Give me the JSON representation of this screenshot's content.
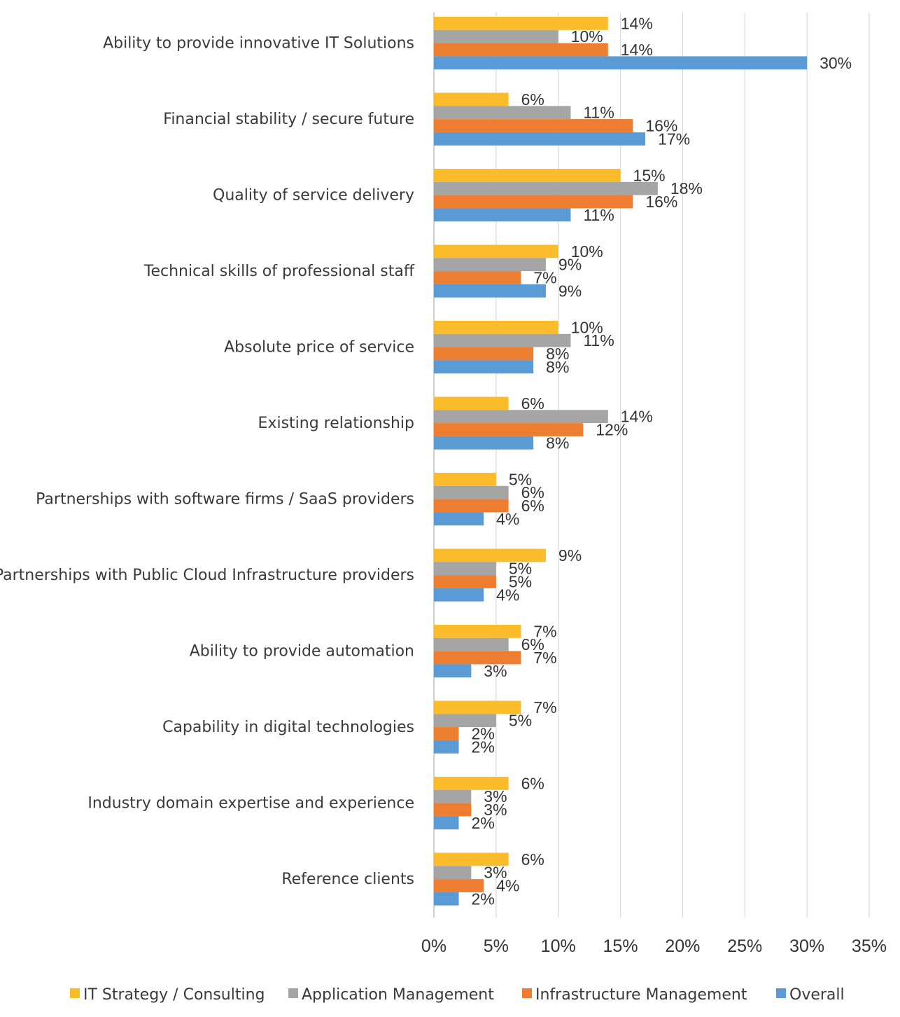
{
  "chart_data": {
    "type": "bar",
    "orientation": "horizontal",
    "categories": [
      "Ability to provide innovative IT Solutions",
      "Financial stability / secure future",
      "Quality of service delivery",
      "Technical  skills of professional staff",
      "Absolute price of service",
      "Existing relationship",
      "Partnerships with software firms / SaaS providers",
      "Partnerships with  Public Cloud Infrastructure providers",
      "Ability to provide automation",
      "Capability  in digital technologies",
      "Industry domain expertise  and experience",
      "Reference  clients"
    ],
    "series": [
      {
        "name": "IT Strategy  / Consulting",
        "color": "#FBBC2C",
        "values": [
          14,
          6,
          15,
          10,
          10,
          6,
          5,
          9,
          7,
          7,
          6,
          6
        ],
        "labels": [
          "14%",
          "6%",
          "15%",
          "10%",
          "10%",
          "6%",
          "5%",
          "9%",
          "7%",
          "7%",
          "6%",
          "6%"
        ]
      },
      {
        "name": "Application Management",
        "color": "#A5A5A5",
        "values": [
          10,
          11,
          18,
          9,
          11,
          14,
          6,
          5,
          6,
          5,
          3,
          3
        ],
        "labels": [
          "10%",
          "11%",
          "18%",
          "9%",
          "11%",
          "14%",
          "6%",
          "5%",
          "6%",
          "5%",
          "3%",
          "3%"
        ]
      },
      {
        "name": "Infrastructure Management",
        "color": "#ED7D31",
        "values": [
          14,
          16,
          16,
          7,
          8,
          12,
          6,
          5,
          7,
          2,
          3,
          4
        ],
        "labels": [
          "14%",
          "16%",
          "16%",
          "7%",
          "8%",
          "12%",
          "6%",
          "5%",
          "7%",
          "2%",
          "3%",
          "4%"
        ]
      },
      {
        "name": "Overall",
        "color": "#5B9BD5",
        "values": [
          30,
          17,
          11,
          9,
          8,
          8,
          4,
          4,
          3,
          2,
          2,
          2
        ],
        "labels": [
          "30%",
          "17%",
          "11%",
          "9%",
          "8%",
          "8%",
          "4%",
          "4%",
          "3%",
          "2%",
          "2%",
          "2%"
        ]
      }
    ],
    "xlim": [
      0,
      35
    ],
    "xticks": [
      0,
      5,
      10,
      15,
      20,
      25,
      30,
      35
    ],
    "xtick_labels": [
      "0%",
      "5%",
      "10%",
      "15%",
      "20%",
      "25%",
      "30%",
      "35%"
    ],
    "grid": "vertical gridlines",
    "gridline_color": "#D9D9D9",
    "legend_position": "bottom"
  }
}
